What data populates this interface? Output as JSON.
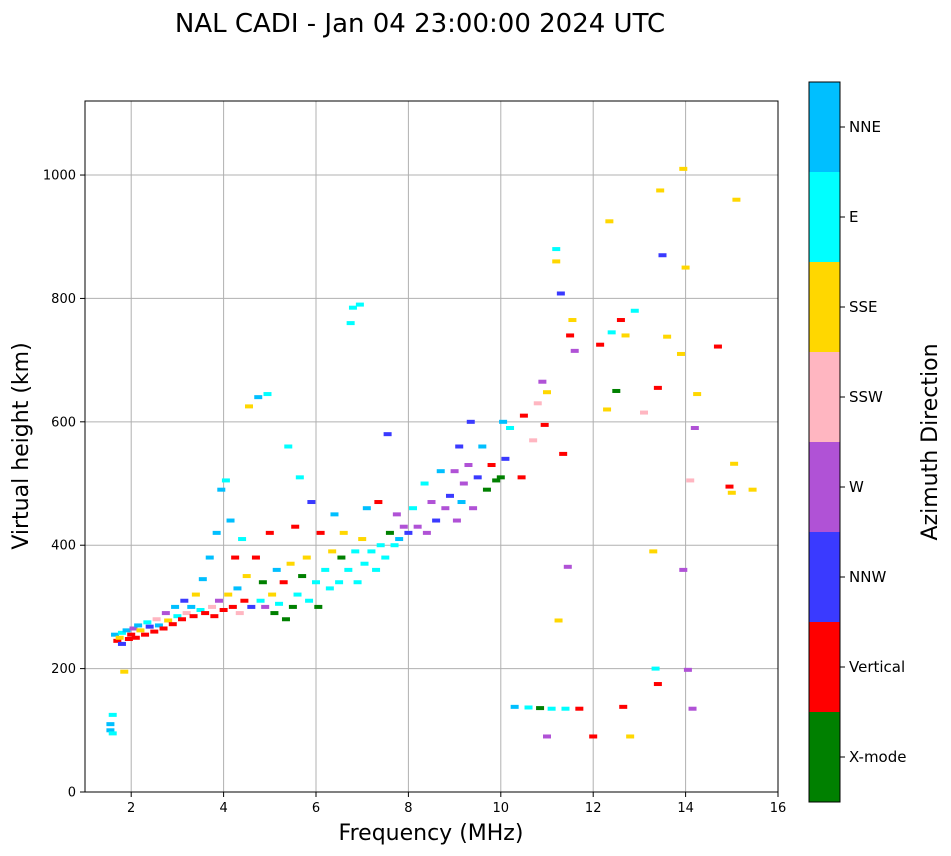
{
  "chart_data": {
    "type": "scatter",
    "title": "NAL CADI - Jan 04 23:00:00 2024 UTC",
    "xlabel": "Frequency (MHz)",
    "ylabel": "Virtual height (km)",
    "xlim": [
      1,
      16
    ],
    "ylim": [
      0,
      1120
    ],
    "xticks": [
      2,
      4,
      6,
      8,
      10,
      12,
      14,
      16
    ],
    "yticks": [
      0,
      200,
      400,
      600,
      800,
      1000
    ],
    "grid": true,
    "colorbar": {
      "label": "Azimuth Direction",
      "categories": [
        {
          "name": "X-mode",
          "color": "#008000"
        },
        {
          "name": "Vertical",
          "color": "#ff0000"
        },
        {
          "name": "NNW",
          "color": "#3a3aff"
        },
        {
          "name": "W",
          "color": "#b052d6"
        },
        {
          "name": "SSW",
          "color": "#ffb6c1"
        },
        {
          "name": "SSE",
          "color": "#ffd700"
        },
        {
          "name": "E",
          "color": "#00ffff"
        },
        {
          "name": "NNE",
          "color": "#00bfff"
        }
      ]
    },
    "points": [
      {
        "f": 1.55,
        "h": 110,
        "c": "NNE"
      },
      {
        "f": 1.55,
        "h": 100,
        "c": "NNE"
      },
      {
        "f": 1.6,
        "h": 95,
        "c": "E"
      },
      {
        "f": 1.6,
        "h": 125,
        "c": "E"
      },
      {
        "f": 1.65,
        "h": 255,
        "c": "NNE"
      },
      {
        "f": 1.7,
        "h": 245,
        "c": "Vertical"
      },
      {
        "f": 1.75,
        "h": 250,
        "c": "SSE"
      },
      {
        "f": 1.8,
        "h": 240,
        "c": "NNW"
      },
      {
        "f": 1.8,
        "h": 258,
        "c": "E"
      },
      {
        "f": 1.85,
        "h": 195,
        "c": "SSE"
      },
      {
        "f": 1.9,
        "h": 262,
        "c": "NNE"
      },
      {
        "f": 1.95,
        "h": 248,
        "c": "Vertical"
      },
      {
        "f": 2.0,
        "h": 255,
        "c": "Vertical"
      },
      {
        "f": 2.05,
        "h": 265,
        "c": "W"
      },
      {
        "f": 2.1,
        "h": 250,
        "c": "Vertical"
      },
      {
        "f": 2.15,
        "h": 270,
        "c": "NNE"
      },
      {
        "f": 2.2,
        "h": 262,
        "c": "SSE"
      },
      {
        "f": 2.3,
        "h": 255,
        "c": "Vertical"
      },
      {
        "f": 2.35,
        "h": 275,
        "c": "E"
      },
      {
        "f": 2.4,
        "h": 268,
        "c": "NNW"
      },
      {
        "f": 2.5,
        "h": 260,
        "c": "Vertical"
      },
      {
        "f": 2.55,
        "h": 280,
        "c": "SSW"
      },
      {
        "f": 2.6,
        "h": 270,
        "c": "NNE"
      },
      {
        "f": 2.7,
        "h": 265,
        "c": "Vertical"
      },
      {
        "f": 2.75,
        "h": 290,
        "c": "W"
      },
      {
        "f": 2.8,
        "h": 278,
        "c": "SSE"
      },
      {
        "f": 2.9,
        "h": 272,
        "c": "Vertical"
      },
      {
        "f": 2.95,
        "h": 300,
        "c": "NNE"
      },
      {
        "f": 3.0,
        "h": 285,
        "c": "E"
      },
      {
        "f": 3.1,
        "h": 280,
        "c": "Vertical"
      },
      {
        "f": 3.15,
        "h": 310,
        "c": "NNW"
      },
      {
        "f": 3.2,
        "h": 290,
        "c": "SSW"
      },
      {
        "f": 3.3,
        "h": 300,
        "c": "NNE"
      },
      {
        "f": 3.35,
        "h": 285,
        "c": "Vertical"
      },
      {
        "f": 3.4,
        "h": 320,
        "c": "SSE"
      },
      {
        "f": 3.5,
        "h": 295,
        "c": "E"
      },
      {
        "f": 3.55,
        "h": 345,
        "c": "NNE"
      },
      {
        "f": 3.6,
        "h": 290,
        "c": "Vertical"
      },
      {
        "f": 3.7,
        "h": 380,
        "c": "NNE"
      },
      {
        "f": 3.75,
        "h": 300,
        "c": "SSW"
      },
      {
        "f": 3.8,
        "h": 285,
        "c": "Vertical"
      },
      {
        "f": 3.85,
        "h": 420,
        "c": "NNE"
      },
      {
        "f": 3.9,
        "h": 310,
        "c": "W"
      },
      {
        "f": 3.95,
        "h": 490,
        "c": "NNE"
      },
      {
        "f": 4.0,
        "h": 295,
        "c": "Vertical"
      },
      {
        "f": 4.05,
        "h": 505,
        "c": "E"
      },
      {
        "f": 4.1,
        "h": 320,
        "c": "SSE"
      },
      {
        "f": 4.15,
        "h": 440,
        "c": "NNE"
      },
      {
        "f": 4.2,
        "h": 300,
        "c": "Vertical"
      },
      {
        "f": 4.25,
        "h": 380,
        "c": "Vertical"
      },
      {
        "f": 4.3,
        "h": 330,
        "c": "NNE"
      },
      {
        "f": 4.35,
        "h": 290,
        "c": "SSW"
      },
      {
        "f": 4.4,
        "h": 410,
        "c": "E"
      },
      {
        "f": 4.45,
        "h": 310,
        "c": "Vertical"
      },
      {
        "f": 4.5,
        "h": 350,
        "c": "SSE"
      },
      {
        "f": 4.55,
        "h": 625,
        "c": "SSE"
      },
      {
        "f": 4.6,
        "h": 300,
        "c": "NNW"
      },
      {
        "f": 4.7,
        "h": 380,
        "c": "Vertical"
      },
      {
        "f": 4.75,
        "h": 640,
        "c": "NNE"
      },
      {
        "f": 4.8,
        "h": 310,
        "c": "E"
      },
      {
        "f": 4.85,
        "h": 340,
        "c": "X-mode"
      },
      {
        "f": 4.9,
        "h": 300,
        "c": "W"
      },
      {
        "f": 4.95,
        "h": 645,
        "c": "E"
      },
      {
        "f": 5.0,
        "h": 420,
        "c": "Vertical"
      },
      {
        "f": 5.05,
        "h": 320,
        "c": "SSE"
      },
      {
        "f": 5.1,
        "h": 290,
        "c": "X-mode"
      },
      {
        "f": 5.15,
        "h": 360,
        "c": "NNE"
      },
      {
        "f": 5.2,
        "h": 305,
        "c": "E"
      },
      {
        "f": 5.3,
        "h": 340,
        "c": "Vertical"
      },
      {
        "f": 5.35,
        "h": 280,
        "c": "X-mode"
      },
      {
        "f": 5.4,
        "h": 560,
        "c": "E"
      },
      {
        "f": 5.45,
        "h": 370,
        "c": "SSE"
      },
      {
        "f": 5.5,
        "h": 300,
        "c": "X-mode"
      },
      {
        "f": 5.55,
        "h": 430,
        "c": "Vertical"
      },
      {
        "f": 5.6,
        "h": 320,
        "c": "E"
      },
      {
        "f": 5.65,
        "h": 510,
        "c": "E"
      },
      {
        "f": 5.7,
        "h": 350,
        "c": "X-mode"
      },
      {
        "f": 5.8,
        "h": 380,
        "c": "SSE"
      },
      {
        "f": 5.85,
        "h": 310,
        "c": "E"
      },
      {
        "f": 5.9,
        "h": 470,
        "c": "NNW"
      },
      {
        "f": 6.0,
        "h": 340,
        "c": "E"
      },
      {
        "f": 6.05,
        "h": 300,
        "c": "X-mode"
      },
      {
        "f": 6.1,
        "h": 420,
        "c": "Vertical"
      },
      {
        "f": 6.2,
        "h": 360,
        "c": "E"
      },
      {
        "f": 6.3,
        "h": 330,
        "c": "E"
      },
      {
        "f": 6.35,
        "h": 390,
        "c": "SSE"
      },
      {
        "f": 6.4,
        "h": 450,
        "c": "NNE"
      },
      {
        "f": 6.5,
        "h": 340,
        "c": "E"
      },
      {
        "f": 6.55,
        "h": 380,
        "c": "X-mode"
      },
      {
        "f": 6.6,
        "h": 420,
        "c": "SSE"
      },
      {
        "f": 6.7,
        "h": 360,
        "c": "E"
      },
      {
        "f": 6.75,
        "h": 760,
        "c": "E"
      },
      {
        "f": 6.8,
        "h": 785,
        "c": "E"
      },
      {
        "f": 6.85,
        "h": 390,
        "c": "E"
      },
      {
        "f": 6.9,
        "h": 340,
        "c": "E"
      },
      {
        "f": 6.95,
        "h": 790,
        "c": "E"
      },
      {
        "f": 7.0,
        "h": 410,
        "c": "SSE"
      },
      {
        "f": 7.05,
        "h": 370,
        "c": "E"
      },
      {
        "f": 7.1,
        "h": 460,
        "c": "NNE"
      },
      {
        "f": 7.2,
        "h": 390,
        "c": "E"
      },
      {
        "f": 7.3,
        "h": 360,
        "c": "E"
      },
      {
        "f": 7.35,
        "h": 470,
        "c": "Vertical"
      },
      {
        "f": 7.4,
        "h": 400,
        "c": "E"
      },
      {
        "f": 7.5,
        "h": 380,
        "c": "E"
      },
      {
        "f": 7.55,
        "h": 580,
        "c": "NNW"
      },
      {
        "f": 7.6,
        "h": 420,
        "c": "X-mode"
      },
      {
        "f": 7.7,
        "h": 400,
        "c": "E"
      },
      {
        "f": 7.75,
        "h": 450,
        "c": "W"
      },
      {
        "f": 7.8,
        "h": 410,
        "c": "NNE"
      },
      {
        "f": 7.9,
        "h": 430,
        "c": "W"
      },
      {
        "f": 8.0,
        "h": 420,
        "c": "NNW"
      },
      {
        "f": 8.1,
        "h": 460,
        "c": "E"
      },
      {
        "f": 8.2,
        "h": 430,
        "c": "W"
      },
      {
        "f": 8.35,
        "h": 500,
        "c": "E"
      },
      {
        "f": 8.4,
        "h": 420,
        "c": "W"
      },
      {
        "f": 8.5,
        "h": 470,
        "c": "W"
      },
      {
        "f": 8.6,
        "h": 440,
        "c": "NNW"
      },
      {
        "f": 8.7,
        "h": 520,
        "c": "NNE"
      },
      {
        "f": 8.8,
        "h": 460,
        "c": "W"
      },
      {
        "f": 8.9,
        "h": 480,
        "c": "NNW"
      },
      {
        "f": 9.0,
        "h": 520,
        "c": "W"
      },
      {
        "f": 9.05,
        "h": 440,
        "c": "W"
      },
      {
        "f": 9.1,
        "h": 560,
        "c": "NNW"
      },
      {
        "f": 9.15,
        "h": 470,
        "c": "NNE"
      },
      {
        "f": 9.2,
        "h": 500,
        "c": "W"
      },
      {
        "f": 9.3,
        "h": 530,
        "c": "W"
      },
      {
        "f": 9.35,
        "h": 600,
        "c": "NNW"
      },
      {
        "f": 9.4,
        "h": 460,
        "c": "W"
      },
      {
        "f": 9.5,
        "h": 510,
        "c": "NNW"
      },
      {
        "f": 9.6,
        "h": 560,
        "c": "NNE"
      },
      {
        "f": 9.7,
        "h": 490,
        "c": "X-mode"
      },
      {
        "f": 9.8,
        "h": 530,
        "c": "Vertical"
      },
      {
        "f": 9.9,
        "h": 505,
        "c": "X-mode"
      },
      {
        "f": 10.0,
        "h": 510,
        "c": "X-mode"
      },
      {
        "f": 10.05,
        "h": 600,
        "c": "NNE"
      },
      {
        "f": 10.1,
        "h": 540,
        "c": "NNW"
      },
      {
        "f": 10.2,
        "h": 590,
        "c": "E"
      },
      {
        "f": 10.3,
        "h": 138,
        "c": "NNE"
      },
      {
        "f": 10.45,
        "h": 510,
        "c": "Vertical"
      },
      {
        "f": 10.5,
        "h": 610,
        "c": "Vertical"
      },
      {
        "f": 10.6,
        "h": 137,
        "c": "E"
      },
      {
        "f": 10.7,
        "h": 570,
        "c": "SSW"
      },
      {
        "f": 10.8,
        "h": 630,
        "c": "SSW"
      },
      {
        "f": 10.85,
        "h": 136,
        "c": "X-mode"
      },
      {
        "f": 10.9,
        "h": 665,
        "c": "W"
      },
      {
        "f": 10.95,
        "h": 595,
        "c": "Vertical"
      },
      {
        "f": 11.0,
        "h": 90,
        "c": "W"
      },
      {
        "f": 11.0,
        "h": 648,
        "c": "SSE"
      },
      {
        "f": 11.1,
        "h": 135,
        "c": "E"
      },
      {
        "f": 11.2,
        "h": 860,
        "c": "SSE"
      },
      {
        "f": 11.2,
        "h": 880,
        "c": "E"
      },
      {
        "f": 11.25,
        "h": 278,
        "c": "SSE"
      },
      {
        "f": 11.3,
        "h": 808,
        "c": "NNW"
      },
      {
        "f": 11.35,
        "h": 548,
        "c": "Vertical"
      },
      {
        "f": 11.4,
        "h": 135,
        "c": "E"
      },
      {
        "f": 11.45,
        "h": 365,
        "c": "W"
      },
      {
        "f": 11.5,
        "h": 740,
        "c": "Vertical"
      },
      {
        "f": 11.55,
        "h": 765,
        "c": "SSE"
      },
      {
        "f": 11.6,
        "h": 715,
        "c": "W"
      },
      {
        "f": 11.7,
        "h": 135,
        "c": "Vertical"
      },
      {
        "f": 12.0,
        "h": 90,
        "c": "Vertical"
      },
      {
        "f": 12.15,
        "h": 725,
        "c": "Vertical"
      },
      {
        "f": 12.3,
        "h": 620,
        "c": "SSE"
      },
      {
        "f": 12.35,
        "h": 925,
        "c": "SSE"
      },
      {
        "f": 12.4,
        "h": 745,
        "c": "E"
      },
      {
        "f": 12.5,
        "h": 650,
        "c": "X-mode"
      },
      {
        "f": 12.6,
        "h": 765,
        "c": "Vertical"
      },
      {
        "f": 12.65,
        "h": 138,
        "c": "Vertical"
      },
      {
        "f": 12.7,
        "h": 740,
        "c": "SSE"
      },
      {
        "f": 12.8,
        "h": 90,
        "c": "SSE"
      },
      {
        "f": 12.9,
        "h": 780,
        "c": "E"
      },
      {
        "f": 13.1,
        "h": 615,
        "c": "SSW"
      },
      {
        "f": 13.3,
        "h": 390,
        "c": "SSE"
      },
      {
        "f": 13.35,
        "h": 200,
        "c": "E"
      },
      {
        "f": 13.4,
        "h": 175,
        "c": "Vertical"
      },
      {
        "f": 13.4,
        "h": 655,
        "c": "Vertical"
      },
      {
        "f": 13.45,
        "h": 975,
        "c": "SSE"
      },
      {
        "f": 13.5,
        "h": 870,
        "c": "NNW"
      },
      {
        "f": 13.6,
        "h": 738,
        "c": "SSE"
      },
      {
        "f": 13.9,
        "h": 710,
        "c": "SSE"
      },
      {
        "f": 13.95,
        "h": 360,
        "c": "W"
      },
      {
        "f": 13.95,
        "h": 1010,
        "c": "SSE"
      },
      {
        "f": 14.0,
        "h": 850,
        "c": "SSE"
      },
      {
        "f": 14.05,
        "h": 198,
        "c": "W"
      },
      {
        "f": 14.1,
        "h": 505,
        "c": "SSW"
      },
      {
        "f": 14.15,
        "h": 135,
        "c": "W"
      },
      {
        "f": 14.2,
        "h": 590,
        "c": "W"
      },
      {
        "f": 14.25,
        "h": 645,
        "c": "SSE"
      },
      {
        "f": 14.7,
        "h": 722,
        "c": "Vertical"
      },
      {
        "f": 14.95,
        "h": 495,
        "c": "Vertical"
      },
      {
        "f": 15.0,
        "h": 485,
        "c": "SSE"
      },
      {
        "f": 15.05,
        "h": 532,
        "c": "SSE"
      },
      {
        "f": 15.1,
        "h": 960,
        "c": "SSE"
      },
      {
        "f": 15.45,
        "h": 490,
        "c": "SSE"
      }
    ]
  }
}
